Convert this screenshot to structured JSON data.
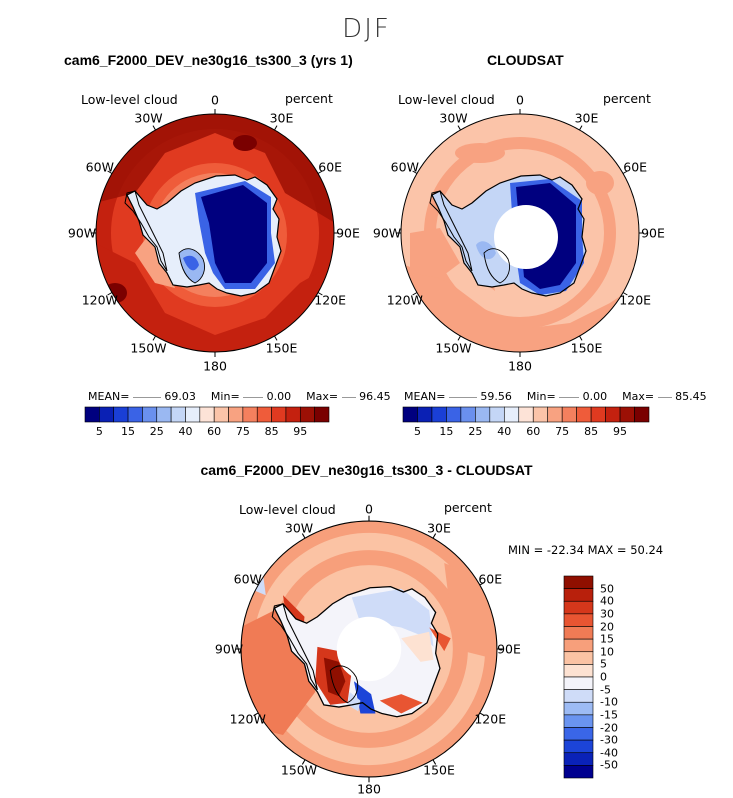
{
  "season": "DJF",
  "difference_title": "cam6_F2000_DEV_ne30g16_ts300_3 - CLOUDSAT",
  "stats_diff": "MIN = -22.34 MAX =  50.24",
  "colors": {
    "blues": [
      "#00007f",
      "#0a20b4",
      "#1a3fd6",
      "#3a63e6",
      "#6a90ee",
      "#9ab8f2",
      "#c4d6f6",
      "#e6eefb"
    ],
    "reds": [
      "#fde3d7",
      "#fbc4a9",
      "#f8a281",
      "#f4805e",
      "#ef5c3a",
      "#e03a20",
      "#c4210f",
      "#9c1005",
      "#7a0000"
    ],
    "diff": [
      "#00008f",
      "#0a22b8",
      "#1c44d8",
      "#3a66e8",
      "#6a94f0",
      "#9dbbf4",
      "#cfdcf8",
      "#f4f4fa",
      "#fde2d2",
      "#fbc3a4",
      "#f79f7b",
      "#f07b55",
      "#e85532",
      "#d5371b",
      "#b8200c",
      "#8f0f00"
    ]
  },
  "maps": [
    {
      "title": "cam6_F2000_DEV_ne30g16_ts300_3 (yrs 1)",
      "variable": "Low-level cloud",
      "units": "percent",
      "mean_label": "MEAN=",
      "mean": "69.03",
      "min_label": "Min=",
      "min": "0.00",
      "max_label": "Max=",
      "max": "96.45",
      "colorbar_ticks": [
        "5",
        "15",
        "25",
        "40",
        "60",
        "75",
        "85",
        "95"
      ]
    },
    {
      "title": "CLOUDSAT",
      "variable": "Low-level cloud",
      "units": "percent",
      "mean_label": "MEAN=",
      "mean": "59.56",
      "min_label": "Min=",
      "min": "0.00",
      "max_label": "Max=",
      "max": "85.45",
      "colorbar_ticks": [
        "5",
        "15",
        "25",
        "40",
        "60",
        "75",
        "85",
        "95"
      ]
    },
    {
      "title": "",
      "variable": "Low-level cloud",
      "units": "percent",
      "colorbar_ticks": [
        "50",
        "40",
        "30",
        "20",
        "15",
        "10",
        "5",
        "0",
        "-5",
        "-10",
        "-15",
        "-20",
        "-30",
        "-40",
        "-50"
      ]
    }
  ],
  "longitude_labels": [
    "0",
    "30E",
    "60E",
    "90E",
    "120E",
    "150E",
    "180",
    "150W",
    "120W",
    "90W",
    "60W",
    "30W"
  ]
}
